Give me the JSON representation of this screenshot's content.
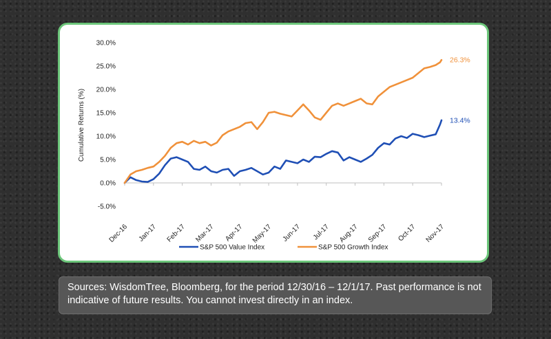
{
  "caption": {
    "text": "Sources: WisdomTree, Bloomberg, for the period 12/30/16 – 12/1/17. Past performance is not indicative of future results. You cannot invest directly in an index."
  },
  "chart_data": {
    "type": "line",
    "title": "",
    "xlabel": "",
    "ylabel": "Cumulative Returns (%)",
    "ylim": [
      -5,
      30
    ],
    "yticks": [
      "30.0%",
      "25.0%",
      "20.0%",
      "15.0%",
      "10.0%",
      "5.0%",
      "0.0%",
      "-5.0%"
    ],
    "categories": [
      "Dec-16",
      "Jan-17",
      "Feb-17",
      "Mar-17",
      "Apr-17",
      "May-17",
      "Jun-17",
      "Jul-17",
      "Aug-17",
      "Sep-17",
      "Oct-17",
      "Nov-17"
    ],
    "grid": false,
    "legend_position": "bottom",
    "series": [
      {
        "name": "S&P 500 Value Index",
        "color": "#1f4fb5",
        "end_label": "13.4%",
        "x": [
          0,
          0.2,
          0.4,
          0.6,
          0.8,
          1.0,
          1.2,
          1.4,
          1.6,
          1.8,
          2.0,
          2.2,
          2.4,
          2.6,
          2.8,
          3.0,
          3.2,
          3.4,
          3.6,
          3.8,
          4.0,
          4.2,
          4.4,
          4.6,
          4.8,
          5.0,
          5.2,
          5.4,
          5.6,
          5.8,
          6.0,
          6.2,
          6.4,
          6.6,
          6.8,
          7.0,
          7.2,
          7.4,
          7.6,
          7.8,
          8.0,
          8.2,
          8.4,
          8.6,
          8.8,
          9.0,
          9.2,
          9.4,
          9.6,
          9.8,
          10.0,
          10.2,
          10.4,
          10.6,
          10.8,
          10.95,
          11.0
        ],
        "values": [
          0.0,
          1.2,
          0.6,
          0.3,
          0.2,
          0.8,
          2.0,
          3.8,
          5.2,
          5.5,
          5.0,
          4.5,
          3.0,
          2.8,
          3.5,
          2.5,
          2.2,
          2.8,
          3.0,
          1.5,
          2.5,
          2.8,
          3.2,
          2.5,
          1.8,
          2.2,
          3.5,
          3.0,
          4.8,
          4.5,
          4.2,
          5.0,
          4.5,
          5.6,
          5.5,
          6.2,
          6.8,
          6.5,
          4.8,
          5.5,
          5.0,
          4.5,
          5.2,
          6.0,
          7.5,
          8.5,
          8.2,
          9.5,
          10.0,
          9.6,
          10.5,
          10.2,
          9.8,
          10.1,
          10.4,
          12.5,
          13.4
        ]
      },
      {
        "name": "S&P 500 Growth Index",
        "color": "#f0913a",
        "end_label": "26.3%",
        "x": [
          0,
          0.2,
          0.4,
          0.6,
          0.8,
          1.0,
          1.2,
          1.4,
          1.6,
          1.8,
          2.0,
          2.2,
          2.4,
          2.6,
          2.8,
          3.0,
          3.2,
          3.4,
          3.6,
          3.8,
          4.0,
          4.2,
          4.4,
          4.6,
          4.8,
          5.0,
          5.2,
          5.4,
          5.6,
          5.8,
          6.0,
          6.2,
          6.4,
          6.6,
          6.8,
          7.0,
          7.2,
          7.4,
          7.6,
          7.8,
          8.0,
          8.2,
          8.4,
          8.6,
          8.8,
          9.0,
          9.2,
          9.4,
          9.6,
          9.8,
          10.0,
          10.2,
          10.4,
          10.6,
          10.8,
          10.95,
          11.0
        ],
        "values": [
          0.0,
          1.8,
          2.5,
          2.8,
          3.2,
          3.5,
          4.5,
          5.8,
          7.5,
          8.5,
          8.8,
          8.2,
          9.0,
          8.5,
          8.8,
          8.0,
          8.6,
          10.2,
          11.0,
          11.5,
          12.0,
          12.8,
          13.0,
          11.5,
          13.0,
          15.0,
          15.2,
          14.8,
          14.5,
          14.2,
          15.5,
          16.8,
          15.5,
          14.0,
          13.5,
          15.0,
          16.5,
          17.0,
          16.5,
          17.0,
          17.5,
          18.0,
          17.0,
          16.8,
          18.5,
          19.5,
          20.5,
          21.0,
          21.5,
          22.0,
          22.5,
          23.5,
          24.5,
          24.8,
          25.2,
          25.8,
          26.3
        ]
      }
    ]
  }
}
